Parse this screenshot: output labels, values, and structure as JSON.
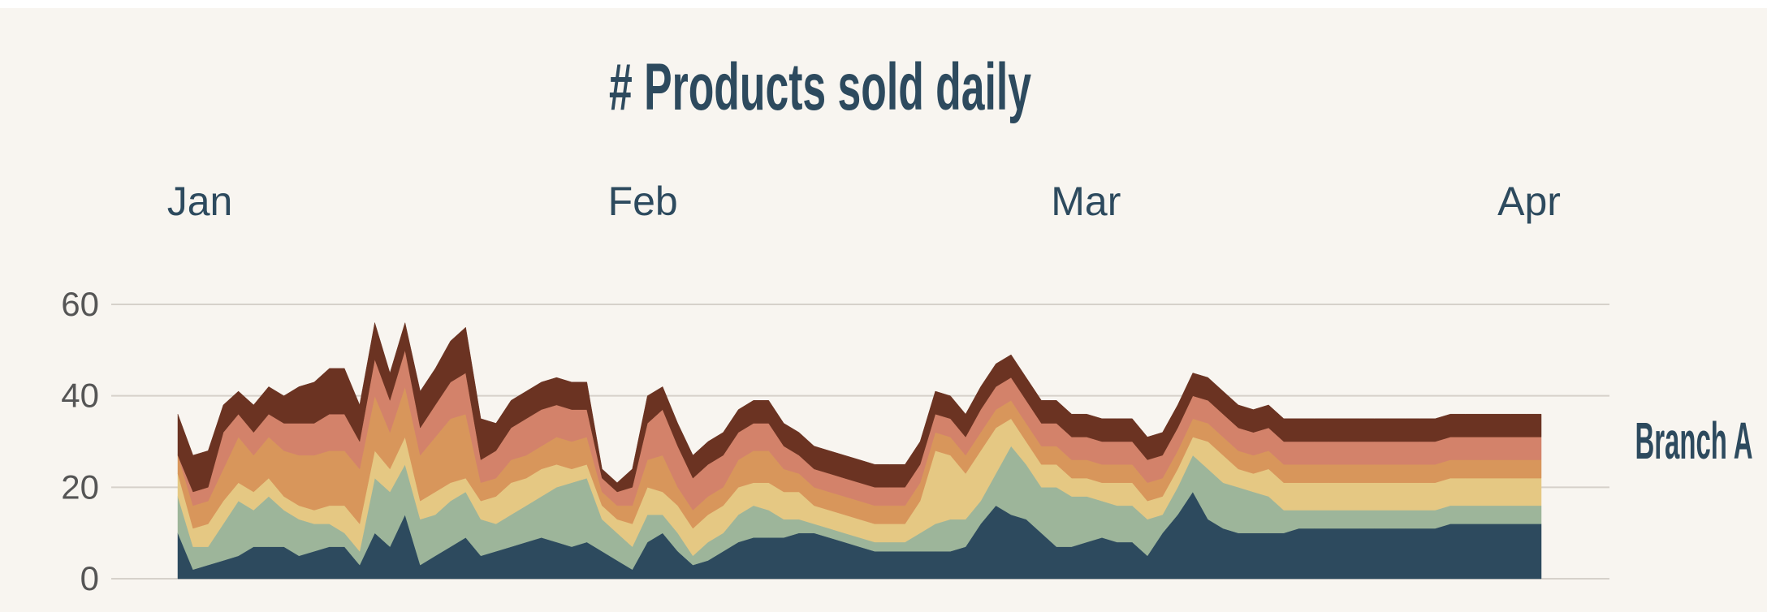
{
  "chart_data": {
    "type": "area",
    "stacked": true,
    "title": "# Products sold daily",
    "series_label": "Branch A",
    "x_labels": [
      "Jan",
      "Feb",
      "Mar",
      "Apr"
    ],
    "y_ticks": [
      0,
      20,
      40,
      60
    ],
    "ylim": [
      0,
      60
    ],
    "grid": true,
    "x": [
      "2021-01-01",
      "2021-01-02",
      "2021-01-03",
      "2021-01-04",
      "2021-01-05",
      "2021-01-06",
      "2021-01-07",
      "2021-01-08",
      "2021-01-09",
      "2021-01-10",
      "2021-01-11",
      "2021-01-12",
      "2021-01-13",
      "2021-01-14",
      "2021-01-15",
      "2021-01-16",
      "2021-01-17",
      "2021-01-18",
      "2021-01-19",
      "2021-01-20",
      "2021-01-21",
      "2021-01-22",
      "2021-01-23",
      "2021-01-24",
      "2021-01-25",
      "2021-01-26",
      "2021-01-27",
      "2021-01-28",
      "2021-01-29",
      "2021-01-30",
      "2021-01-31",
      "2021-02-01",
      "2021-02-02",
      "2021-02-03",
      "2021-02-04",
      "2021-02-05",
      "2021-02-06",
      "2021-02-07",
      "2021-02-08",
      "2021-02-09",
      "2021-02-10",
      "2021-02-11",
      "2021-02-12",
      "2021-02-13",
      "2021-02-14",
      "2021-02-15",
      "2021-02-16",
      "2021-02-17",
      "2021-02-18",
      "2021-02-19",
      "2021-02-20",
      "2021-02-21",
      "2021-02-22",
      "2021-02-23",
      "2021-02-24",
      "2021-02-25",
      "2021-02-26",
      "2021-02-27",
      "2021-02-28",
      "2021-03-01",
      "2021-03-02",
      "2021-03-03",
      "2021-03-04",
      "2021-03-05",
      "2021-03-06",
      "2021-03-07",
      "2021-03-08",
      "2021-03-09",
      "2021-03-10",
      "2021-03-11",
      "2021-03-12",
      "2021-03-13",
      "2021-03-14",
      "2021-03-15",
      "2021-03-16",
      "2021-03-17",
      "2021-03-18",
      "2021-03-19",
      "2021-03-20",
      "2021-03-21",
      "2021-03-22",
      "2021-03-23",
      "2021-03-24",
      "2021-03-25",
      "2021-03-26",
      "2021-03-27",
      "2021-03-28",
      "2021-03-29",
      "2021-03-30",
      "2021-03-31",
      "2021-04-01"
    ],
    "series": [
      {
        "color": "#2d4a5e",
        "values": [
          10,
          2,
          3,
          4,
          5,
          7,
          7,
          7,
          5,
          6,
          7,
          7,
          3,
          10,
          7,
          14,
          3,
          5,
          7,
          9,
          5,
          6,
          7,
          8,
          9,
          8,
          7,
          8,
          6,
          4,
          2,
          8,
          10,
          6,
          3,
          4,
          6,
          8,
          9,
          9,
          9,
          10,
          10,
          9,
          8,
          7,
          6,
          6,
          6,
          6,
          6,
          6,
          7,
          12,
          16,
          14,
          13,
          10,
          7,
          7,
          8,
          9,
          8,
          8,
          5,
          10,
          14,
          19,
          13,
          11,
          10,
          10,
          10,
          10,
          11,
          11,
          11,
          11,
          11,
          11,
          11,
          11,
          11,
          11,
          12,
          12,
          12,
          12,
          12,
          12,
          12
        ]
      },
      {
        "color": "#9db59a",
        "values": [
          8,
          5,
          4,
          8,
          12,
          8,
          11,
          8,
          8,
          6,
          5,
          3,
          3,
          12,
          12,
          11,
          10,
          9,
          10,
          10,
          8,
          6,
          7,
          8,
          9,
          12,
          14,
          14,
          7,
          6,
          5,
          6,
          4,
          4,
          2,
          4,
          4,
          6,
          7,
          6,
          4,
          3,
          2,
          2,
          2,
          2,
          2,
          2,
          2,
          4,
          6,
          7,
          6,
          5,
          7,
          15,
          12,
          10,
          13,
          11,
          10,
          8,
          8,
          8,
          8,
          4,
          6,
          8,
          11,
          10,
          10,
          9,
          8,
          5,
          4,
          4,
          4,
          4,
          4,
          4,
          4,
          4,
          4,
          4,
          4,
          4,
          4,
          4,
          4,
          4,
          4
        ]
      },
      {
        "color": "#e5c883",
        "values": [
          5,
          4,
          5,
          5,
          4,
          4,
          4,
          3,
          3,
          3,
          4,
          6,
          6,
          6,
          5,
          6,
          4,
          5,
          4,
          3,
          4,
          6,
          7,
          6,
          6,
          5,
          3,
          3,
          3,
          3,
          5,
          6,
          5,
          6,
          6,
          6,
          6,
          6,
          5,
          6,
          6,
          6,
          4,
          4,
          4,
          4,
          4,
          4,
          4,
          7,
          16,
          14,
          10,
          11,
          10,
          6,
          5,
          5,
          5,
          4,
          4,
          4,
          5,
          5,
          4,
          4,
          4,
          4,
          6,
          6,
          4,
          4,
          6,
          6,
          6,
          6,
          6,
          6,
          6,
          6,
          6,
          6,
          6,
          6,
          6,
          6,
          6,
          6,
          6,
          6,
          6
        ]
      },
      {
        "color": "#d8965b",
        "values": [
          4,
          5,
          5,
          7,
          10,
          8,
          9,
          10,
          11,
          12,
          12,
          12,
          12,
          12,
          8,
          11,
          10,
          12,
          14,
          14,
          4,
          4,
          5,
          5,
          5,
          6,
          6,
          6,
          3,
          3,
          4,
          6,
          8,
          4,
          4,
          4,
          4,
          6,
          7,
          7,
          5,
          4,
          4,
          4,
          4,
          4,
          4,
          4,
          4,
          4,
          4,
          4,
          4,
          4,
          4,
          4,
          4,
          4,
          4,
          4,
          4,
          4,
          4,
          4,
          4,
          4,
          4,
          4,
          4,
          4,
          4,
          4,
          4,
          4,
          4,
          4,
          4,
          4,
          4,
          4,
          4,
          4,
          4,
          4,
          4,
          4,
          4,
          4,
          4,
          4,
          4
        ]
      },
      {
        "color": "#d3826a",
        "values": [
          0,
          3,
          3,
          8,
          5,
          5,
          5,
          6,
          7,
          7,
          8,
          8,
          6,
          8,
          7,
          8,
          6,
          7,
          8,
          9,
          5,
          6,
          7,
          8,
          8,
          7,
          7,
          6,
          3,
          3,
          4,
          8,
          10,
          9,
          7,
          7,
          7,
          6,
          6,
          6,
          5,
          4,
          4,
          4,
          4,
          4,
          4,
          4,
          4,
          4,
          4,
          4,
          4,
          5,
          5,
          5,
          5,
          5,
          5,
          5,
          5,
          5,
          5,
          5,
          5,
          5,
          5,
          5,
          5,
          5,
          5,
          5,
          5,
          5,
          5,
          5,
          5,
          5,
          5,
          5,
          5,
          5,
          5,
          5,
          5,
          5,
          5,
          5,
          5,
          5,
          5
        ]
      },
      {
        "color": "#6b3322",
        "values": [
          9,
          8,
          8,
          6,
          5,
          6,
          6,
          6,
          8,
          9,
          10,
          10,
          8,
          8,
          6,
          6,
          8,
          8,
          9,
          10,
          9,
          6,
          6,
          6,
          6,
          6,
          6,
          6,
          2,
          2,
          4,
          6,
          5,
          5,
          5,
          5,
          5,
          5,
          5,
          5,
          5,
          5,
          5,
          5,
          5,
          5,
          5,
          5,
          5,
          5,
          5,
          5,
          5,
          5,
          5,
          5,
          5,
          5,
          5,
          5,
          5,
          5,
          5,
          5,
          5,
          5,
          5,
          5,
          5,
          5,
          5,
          5,
          5,
          5,
          5,
          5,
          5,
          5,
          5,
          5,
          5,
          5,
          5,
          5,
          5,
          5,
          5,
          5,
          5,
          5,
          5
        ]
      }
    ]
  }
}
